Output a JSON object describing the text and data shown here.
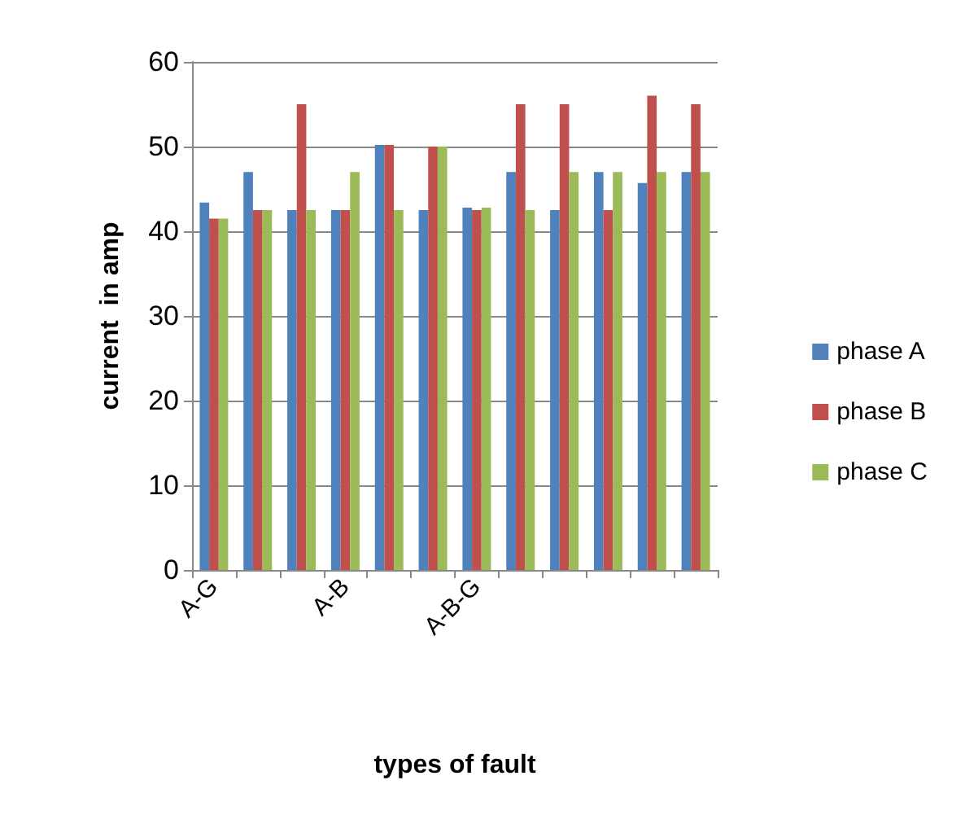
{
  "chart_data": {
    "type": "bar",
    "xlabel": "types of fault",
    "ylabel": "current  in amp",
    "categories": [
      "A-G",
      null,
      null,
      "A-B",
      null,
      null,
      "A-B-G",
      null,
      null,
      null,
      null,
      null
    ],
    "series": [
      {
        "name": "phase A",
        "color": "#4f81bd",
        "values": [
          43.4,
          47,
          42.5,
          42.5,
          50.2,
          42.5,
          42.8,
          47,
          42.5,
          47,
          45.7,
          47
        ]
      },
      {
        "name": "phase B",
        "color": "#c0504d",
        "values": [
          41.5,
          42.5,
          55,
          42.5,
          50.2,
          50,
          42.5,
          55,
          55,
          42.5,
          56,
          55
        ]
      },
      {
        "name": "phase C",
        "color": "#9bbb59",
        "values": [
          41.5,
          42.5,
          42.5,
          47,
          42.5,
          50,
          42.8,
          42.5,
          47,
          47,
          47,
          47
        ]
      }
    ],
    "ylim": [
      0,
      60
    ],
    "yticks": [
      0,
      10,
      20,
      30,
      40,
      50,
      60
    ],
    "grid": "y",
    "legend": "right"
  }
}
